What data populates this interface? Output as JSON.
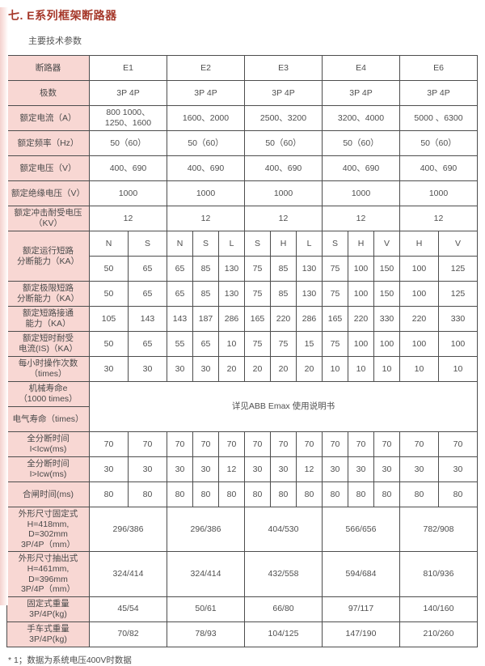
{
  "page": {
    "title": "七. E系列框架断路器",
    "subtitle": "主要技术参数",
    "footnote": "* 1；数据为系统电压400V时数据"
  },
  "colors": {
    "title_red": "#a6392b",
    "label_pink": "#f8d7d3",
    "border_gray": "#4d4d4d",
    "text_gray": "#4f4f4f"
  },
  "table": {
    "rows": [
      {
        "label": "断路器",
        "cells": [
          {
            "t": "E1",
            "cs": 2
          },
          {
            "t": "E2",
            "cs": 3
          },
          {
            "t": "E3",
            "cs": 3
          },
          {
            "t": "E4",
            "cs": 3
          },
          {
            "t": "E6",
            "cs": 2
          }
        ]
      },
      {
        "label": "极数",
        "cells": [
          {
            "t": "3P 4P",
            "cs": 2
          },
          {
            "t": "3P 4P",
            "cs": 3
          },
          {
            "t": "3P 4P",
            "cs": 3
          },
          {
            "t": "3P 4P",
            "cs": 3
          },
          {
            "t": "3P 4P",
            "cs": 2
          }
        ]
      },
      {
        "label": "额定电流（A）",
        "cells": [
          {
            "t": "800 1000、\n1250、1600",
            "cs": 2
          },
          {
            "t": "1600、2000",
            "cs": 3
          },
          {
            "t": "2500、3200",
            "cs": 3
          },
          {
            "t": "3200、4000",
            "cs": 3
          },
          {
            "t": "5000 、6300",
            "cs": 2
          }
        ]
      },
      {
        "label": "额定频率（Hz）",
        "cells": [
          {
            "t": "50（60）",
            "cs": 2
          },
          {
            "t": "50（60）",
            "cs": 3
          },
          {
            "t": "50（60）",
            "cs": 3
          },
          {
            "t": "50（60）",
            "cs": 3
          },
          {
            "t": "50（60）",
            "cs": 2
          }
        ]
      },
      {
        "label": "额定电压（V）",
        "cells": [
          {
            "t": "400、690",
            "cs": 2
          },
          {
            "t": "400、690",
            "cs": 3
          },
          {
            "t": "400、690",
            "cs": 3
          },
          {
            "t": "400、690",
            "cs": 3
          },
          {
            "t": "400、690",
            "cs": 2
          }
        ]
      },
      {
        "label": "额定绝缘电压（V）",
        "cells": [
          {
            "t": "1000",
            "cs": 2
          },
          {
            "t": "1000",
            "cs": 3
          },
          {
            "t": "1000",
            "cs": 3
          },
          {
            "t": "1000",
            "cs": 3
          },
          {
            "t": "1000",
            "cs": 2
          }
        ]
      },
      {
        "label": "额定冲击耐受电压\n（KV）",
        "cells": [
          {
            "t": "12",
            "cs": 2
          },
          {
            "t": "12",
            "cs": 3
          },
          {
            "t": "12",
            "cs": 3
          },
          {
            "t": "12",
            "cs": 3
          },
          {
            "t": "12",
            "cs": 2
          }
        ]
      },
      {
        "label": "额定运行短路\n分断能力（KA）",
        "labelRs": 2,
        "cells": [
          "N",
          "S",
          "N",
          "S",
          "L",
          "S",
          "H",
          "L",
          "S",
          "H",
          "V",
          "H",
          "V"
        ]
      },
      {
        "cells": [
          "50",
          "65",
          "65",
          "85",
          "130",
          "75",
          "85",
          "130",
          "75",
          "100",
          "150",
          "100",
          "125"
        ]
      },
      {
        "label": "额定极限短路\n分断能力（KA）",
        "cells": [
          "50",
          "65",
          "65",
          "85",
          "130",
          "75",
          "85",
          "130",
          "75",
          "100",
          "150",
          "100",
          "125"
        ]
      },
      {
        "label": "额定短路接通\n能力（KA）",
        "cells": [
          "105",
          "143",
          "143",
          "187",
          "286",
          "165",
          "220",
          "286",
          "165",
          "220",
          "330",
          "220",
          "330"
        ]
      },
      {
        "label": "额定短时耐受\n电流(IS)（KA）",
        "cells": [
          "50",
          "65",
          "55",
          "65",
          "10",
          "75",
          "75",
          "15",
          "75",
          "100",
          "100",
          "100",
          "100"
        ]
      },
      {
        "label": "每小时操作次数\n（times）",
        "cells": [
          "30",
          "30",
          "30",
          "30",
          "20",
          "20",
          "20",
          "20",
          "10",
          "10",
          "10",
          "10",
          "10"
        ]
      },
      {
        "label": "机械寿命e\n（1000 times）",
        "cells": [
          {
            "t": "详见ABB Emax 使用说明书",
            "cs": 13,
            "rs": 2
          }
        ]
      },
      {
        "label": "电气寿命（times）",
        "cells": []
      },
      {
        "label": "全分断时间\nI<Icw(ms)",
        "cells": [
          "70",
          "70",
          "70",
          "70",
          "70",
          "70",
          "70",
          "70",
          "70",
          "70",
          "70",
          "70",
          "70"
        ]
      },
      {
        "label": "全分断时间\nI>Icw(ms)",
        "cells": [
          "30",
          "30",
          "30",
          "30",
          "12",
          "30",
          "30",
          "12",
          "30",
          "30",
          "30",
          "30",
          "30"
        ]
      },
      {
        "label": "合闸时间(ms)",
        "cells": [
          "80",
          "80",
          "80",
          "80",
          "80",
          "80",
          "80",
          "80",
          "80",
          "80",
          "80",
          "80",
          "80"
        ]
      },
      {
        "label": "外形尺寸固定式\nH=418mm,\nD=302mm\n3P/4P（mm）",
        "cells": [
          {
            "t": "296/386",
            "cs": 2
          },
          {
            "t": "296/386",
            "cs": 3
          },
          {
            "t": "404/530",
            "cs": 3
          },
          {
            "t": "566/656",
            "cs": 3
          },
          {
            "t": "782/908",
            "cs": 2
          }
        ]
      },
      {
        "label": "外形尺寸抽出式\nH=461mm,\nD=396mm\n3P/4P（mm）",
        "cells": [
          {
            "t": "324/414",
            "cs": 2
          },
          {
            "t": "324/414",
            "cs": 3
          },
          {
            "t": "432/558",
            "cs": 3
          },
          {
            "t": "594/684",
            "cs": 3
          },
          {
            "t": "810/936",
            "cs": 2
          }
        ]
      },
      {
        "label": "固定式重量\n3P/4P(kg)",
        "cells": [
          {
            "t": "45/54",
            "cs": 2
          },
          {
            "t": "50/61",
            "cs": 3
          },
          {
            "t": "66/80",
            "cs": 3
          },
          {
            "t": "97/117",
            "cs": 3
          },
          {
            "t": "140/160",
            "cs": 2
          }
        ]
      },
      {
        "label": "手车式重量\n3P/4P(kg)",
        "cells": [
          {
            "t": "70/82",
            "cs": 2
          },
          {
            "t": "78/93",
            "cs": 3
          },
          {
            "t": "104/125",
            "cs": 3
          },
          {
            "t": "147/190",
            "cs": 3
          },
          {
            "t": "210/260",
            "cs": 2
          }
        ]
      }
    ]
  }
}
